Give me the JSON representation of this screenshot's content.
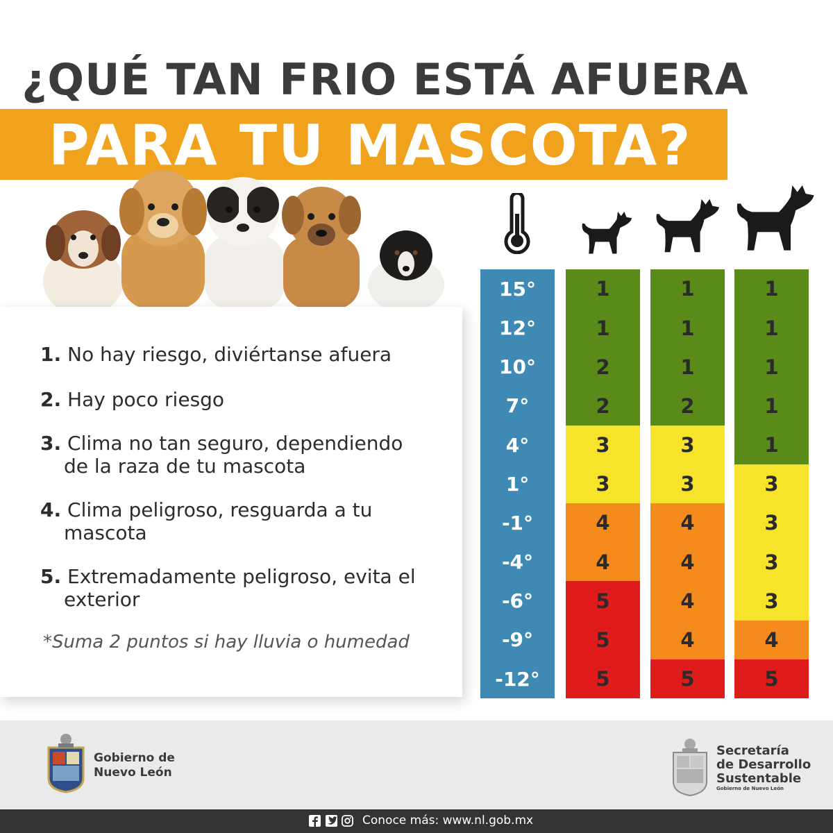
{
  "title": {
    "line1": "¿QUÉ TAN FRIO ESTÁ AFUERA",
    "line2": "PARA TU MASCOTA?"
  },
  "legend": [
    {
      "num": "1.",
      "text": "No hay riesgo, diviértanse afuera",
      "cont": ""
    },
    {
      "num": "2.",
      "text": "Hay poco riesgo",
      "cont": ""
    },
    {
      "num": "3.",
      "text": "Clima no tan seguro, dependiendo",
      "cont": "de la raza de tu mascota"
    },
    {
      "num": "4.",
      "text": "Clima peligroso, resguarda a tu",
      "cont": "mascota"
    },
    {
      "num": "5.",
      "text": "Extremadamente peligroso, evita el",
      "cont": "exterior"
    }
  ],
  "note": "*Suma 2 puntos si hay lluvia o humedad",
  "temperatures": [
    "15°",
    "12°",
    "10°",
    "7°",
    "4°",
    "1°",
    "-1°",
    "-4°",
    "-6°",
    "-9°",
    "-12°"
  ],
  "risk_columns": {
    "small_dog": [
      "1",
      "1",
      "2",
      "2",
      "3",
      "3",
      "4",
      "4",
      "5",
      "5",
      "5"
    ],
    "medium_dog": [
      "1",
      "1",
      "1",
      "2",
      "3",
      "3",
      "4",
      "4",
      "4",
      "4",
      "5"
    ],
    "large_dog": [
      "1",
      "1",
      "1",
      "1",
      "1",
      "3",
      "3",
      "3",
      "3",
      "4",
      "5"
    ]
  },
  "colors": {
    "temp": "#3f8ab5",
    "level1": "#5a8a17",
    "level2": "#5a8a17",
    "level3": "#f7e42a",
    "level4": "#f58b1c",
    "level5": "#e01b1b",
    "banner": "#f1a21c"
  },
  "icons": {
    "thermometer": "thermometer-icon",
    "small": "small-dog-icon",
    "medium": "medium-dog-icon",
    "large": "large-dog-icon"
  },
  "footer": {
    "gov_line1": "Gobierno de",
    "gov_line2": "Nuevo León",
    "sds_line1": "Secretaría",
    "sds_line2": "de Desarrollo",
    "sds_line3": "Sustentable",
    "sds_sub": "Gobierno de Nuevo León",
    "website": "Conoce más: www.nl.gob.mx"
  }
}
